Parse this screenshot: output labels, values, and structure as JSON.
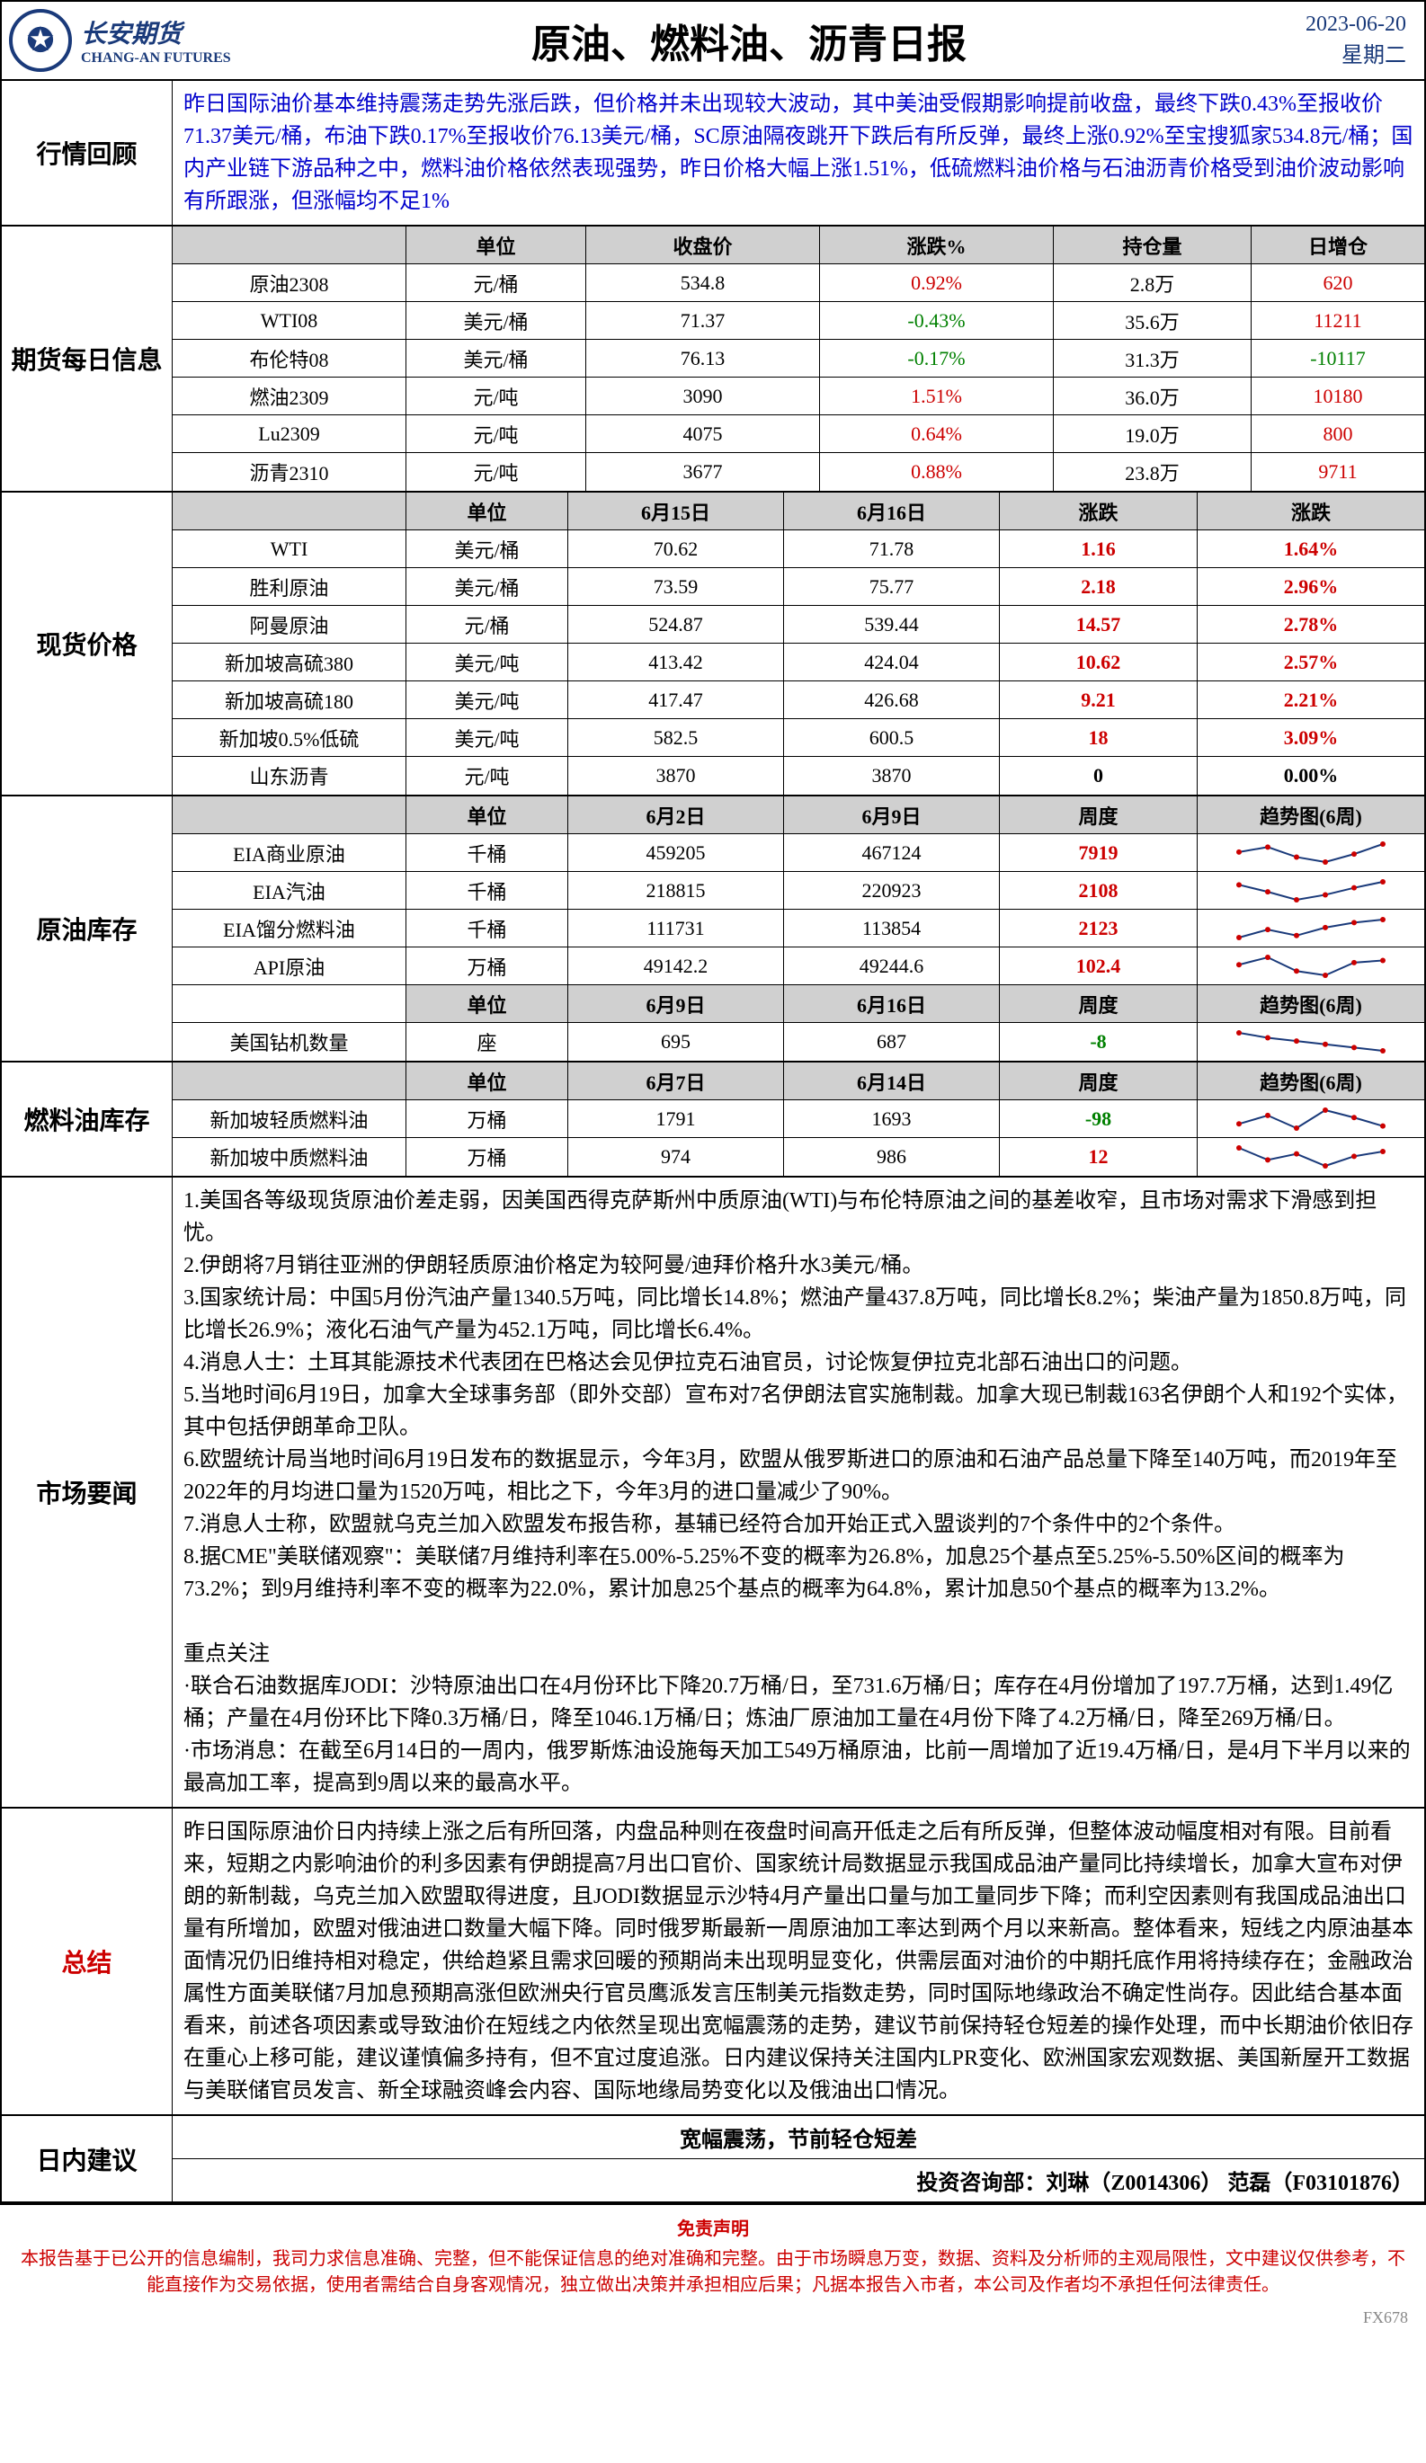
{
  "header": {
    "logo_cn": "长安期货",
    "logo_en": "CHANG-AN FUTURES",
    "title": "原油、燃料油、沥青日报",
    "date": "2023-06-20",
    "weekday": "星期二"
  },
  "review": {
    "label": "行情回顾",
    "text": "昨日国际油价基本维持震荡走势先涨后跌，但价格并未出现较大波动，其中美油受假期影响提前收盘，最终下跌0.43%至报收价71.37美元/桶，布油下跌0.17%至报收价76.13美元/桶，SC原油隔夜跳开下跌后有所反弹，最终上涨0.92%至宝搜狐家534.8元/桶；国内产业链下游品种之中，燃料油价格依然表现强势，昨日价格大幅上涨1.51%，低硫燃料油价格与石油沥青价格受到油价波动影响有所跟涨，但涨幅均不足1%"
  },
  "futures": {
    "label": "期货每日信息",
    "headers": [
      "",
      "单位",
      "收盘价",
      "涨跌%",
      "持仓量",
      "日增仓"
    ],
    "rows": [
      {
        "name": "原油2308",
        "unit": "元/桶",
        "close": "534.8",
        "chg": "0.92%",
        "chg_color": "red",
        "oi": "2.8万",
        "dchg": "620",
        "dchg_color": "red"
      },
      {
        "name": "WTI08",
        "unit": "美元/桶",
        "close": "71.37",
        "chg": "-0.43%",
        "chg_color": "green",
        "oi": "35.6万",
        "dchg": "11211",
        "dchg_color": "red"
      },
      {
        "name": "布伦特08",
        "unit": "美元/桶",
        "close": "76.13",
        "chg": "-0.17%",
        "chg_color": "green",
        "oi": "31.3万",
        "dchg": "-10117",
        "dchg_color": "green"
      },
      {
        "name": "燃油2309",
        "unit": "元/吨",
        "close": "3090",
        "chg": "1.51%",
        "chg_color": "red",
        "oi": "36.0万",
        "dchg": "10180",
        "dchg_color": "red"
      },
      {
        "name": "Lu2309",
        "unit": "元/吨",
        "close": "4075",
        "chg": "0.64%",
        "chg_color": "red",
        "oi": "19.0万",
        "dchg": "800",
        "dchg_color": "red"
      },
      {
        "name": "沥青2310",
        "unit": "元/吨",
        "close": "3677",
        "chg": "0.88%",
        "chg_color": "red",
        "oi": "23.8万",
        "dchg": "9711",
        "dchg_color": "red"
      }
    ]
  },
  "spot": {
    "label": "现货价格",
    "headers": [
      "",
      "单位",
      "6月15日",
      "6月16日",
      "涨跌",
      "涨跌"
    ],
    "rows": [
      {
        "name": "WTI",
        "unit": "美元/桶",
        "d1": "70.62",
        "d2": "71.78",
        "chg": "1.16",
        "chg_color": "red",
        "pct": "1.64%",
        "pct_color": "red"
      },
      {
        "name": "胜利原油",
        "unit": "美元/桶",
        "d1": "73.59",
        "d2": "75.77",
        "chg": "2.18",
        "chg_color": "red",
        "pct": "2.96%",
        "pct_color": "red"
      },
      {
        "name": "阿曼原油",
        "unit": "元/桶",
        "d1": "524.87",
        "d2": "539.44",
        "chg": "14.57",
        "chg_color": "red",
        "pct": "2.78%",
        "pct_color": "red"
      },
      {
        "name": "新加坡高硫380",
        "unit": "美元/吨",
        "d1": "413.42",
        "d2": "424.04",
        "chg": "10.62",
        "chg_color": "red",
        "pct": "2.57%",
        "pct_color": "red"
      },
      {
        "name": "新加坡高硫180",
        "unit": "美元/吨",
        "d1": "417.47",
        "d2": "426.68",
        "chg": "9.21",
        "chg_color": "red",
        "pct": "2.21%",
        "pct_color": "red"
      },
      {
        "name": "新加坡0.5%低硫",
        "unit": "美元/吨",
        "d1": "582.5",
        "d2": "600.5",
        "chg": "18",
        "chg_color": "red",
        "pct": "3.09%",
        "pct_color": "red"
      },
      {
        "name": "山东沥青",
        "unit": "元/吨",
        "d1": "3870",
        "d2": "3870",
        "chg": "0",
        "chg_color": "black",
        "pct": "0.00%",
        "pct_color": "black"
      }
    ]
  },
  "inventory": {
    "label": "原油库存",
    "headers": [
      "",
      "单位",
      "6月2日",
      "6月9日",
      "周度",
      "趋势图(6周)"
    ],
    "rows": [
      {
        "name": "EIA商业原油",
        "unit": "千桶",
        "d1": "459205",
        "d2": "467124",
        "chg": "7919",
        "chg_color": "red",
        "spark": [
          20,
          25,
          15,
          10,
          18,
          28
        ]
      },
      {
        "name": "EIA汽油",
        "unit": "千桶",
        "d1": "218815",
        "d2": "220923",
        "chg": "2108",
        "chg_color": "red",
        "spark": [
          25,
          18,
          10,
          15,
          22,
          28
        ]
      },
      {
        "name": "EIA馏分燃料油",
        "unit": "千桶",
        "d1": "111731",
        "d2": "113854",
        "chg": "2123",
        "chg_color": "red",
        "spark": [
          10,
          18,
          12,
          20,
          25,
          28
        ]
      },
      {
        "name": "API原油",
        "unit": "万桶",
        "d1": "49142.2",
        "d2": "49244.6",
        "chg": "102.4",
        "chg_color": "red",
        "spark": [
          18,
          25,
          12,
          8,
          20,
          22
        ]
      }
    ],
    "rig_headers": [
      "",
      "单位",
      "6月9日",
      "6月16日",
      "周度",
      "趋势图(6周)"
    ],
    "rig": {
      "name": "美国钻机数量",
      "unit": "座",
      "d1": "695",
      "d2": "687",
      "chg": "-8",
      "chg_color": "green",
      "spark": [
        28,
        22,
        18,
        14,
        10,
        6
      ]
    }
  },
  "fuel_inv": {
    "label": "燃料油库存",
    "headers": [
      "",
      "单位",
      "6月7日",
      "6月14日",
      "周度",
      "趋势图(6周)"
    ],
    "rows": [
      {
        "name": "新加坡轻质燃料油",
        "unit": "万桶",
        "d1": "1791",
        "d2": "1693",
        "chg": "-98",
        "chg_color": "green",
        "spark": [
          12,
          20,
          8,
          25,
          18,
          10
        ]
      },
      {
        "name": "新加坡中质燃料油",
        "unit": "万桶",
        "d1": "974",
        "d2": "986",
        "chg": "12",
        "chg_color": "red",
        "spark": [
          25,
          15,
          20,
          10,
          18,
          22
        ]
      }
    ]
  },
  "news": {
    "label": "市场要闻",
    "text": "1.美国各等级现货原油价差走弱，因美国西得克萨斯州中质原油(WTI)与布伦特原油之间的基差收窄，且市场对需求下滑感到担忧。\n2.伊朗将7月销往亚洲的伊朗轻质原油价格定为较阿曼/迪拜价格升水3美元/桶。\n3.国家统计局：中国5月份汽油产量1340.5万吨，同比增长14.8%；燃油产量437.8万吨，同比增长8.2%；柴油产量为1850.8万吨，同比增长26.9%；液化石油气产量为452.1万吨，同比增长6.4%。\n4.消息人士：土耳其能源技术代表团在巴格达会见伊拉克石油官员，讨论恢复伊拉克北部石油出口的问题。\n5.当地时间6月19日，加拿大全球事务部（即外交部）宣布对7名伊朗法官实施制裁。加拿大现已制裁163名伊朗个人和192个实体，其中包括伊朗革命卫队。\n6.欧盟统计局当地时间6月19日发布的数据显示，今年3月，欧盟从俄罗斯进口的原油和石油产品总量下降至140万吨，而2019年至2022年的月均进口量为1520万吨，相比之下，今年3月的进口量减少了90%。\n7.消息人士称，欧盟就乌克兰加入欧盟发布报告称，基辅已经符合加开始正式入盟谈判的7个条件中的2个条件。\n8.据CME\"美联储观察\"：美联储7月维持利率在5.00%-5.25%不变的概率为26.8%，加息25个基点至5.25%-5.50%区间的概率为73.2%；到9月维持利率不变的概率为22.0%，累计加息25个基点的概率为64.8%，累计加息50个基点的概率为13.2%。\n\n重点关注\n·联合石油数据库JODI：沙特原油出口在4月份环比下降20.7万桶/日，至731.6万桶/日；库存在4月份增加了197.7万桶，达到1.49亿桶；产量在4月份环比下降0.3万桶/日，降至1046.1万桶/日；炼油厂原油加工量在4月份下降了4.2万桶/日，降至269万桶/日。\n·市场消息：在截至6月14日的一周内，俄罗斯炼油设施每天加工549万桶原油，比前一周增加了近19.4万桶/日，是4月下半月以来的最高加工率，提高到9周以来的最高水平。"
  },
  "summary": {
    "label": "总结",
    "text": "昨日国际原油价日内持续上涨之后有所回落，内盘品种则在夜盘时间高开低走之后有所反弹，但整体波动幅度相对有限。目前看来，短期之内影响油价的利多因素有伊朗提高7月出口官价、国家统计局数据显示我国成品油产量同比持续增长，加拿大宣布对伊朗的新制裁，乌克兰加入欧盟取得进度，且JODI数据显示沙特4月产量出口量与加工量同步下降；而利空因素则有我国成品油出口量有所增加，欧盟对俄油进口数量大幅下降。同时俄罗斯最新一周原油加工率达到两个月以来新高。整体看来，短线之内原油基本面情况仍旧维持相对稳定，供给趋紧且需求回暖的预期尚未出现明显变化，供需层面对油价的中期托底作用将持续存在；金融政治属性方面美联储7月加息预期高涨但欧洲央行官员鹰派发言压制美元指数走势，同时国际地缘政治不确定性尚存。因此结合基本面看来，前述各项因素或导致油价在短线之内依然呈现出宽幅震荡的走势，建议节前保持轻仓短差的操作处理，而中长期油价依旧存在重心上移可能，建议谨慎偏多持有，但不宜过度追涨。日内建议保持关注国内LPR变化、欧洲国家宏观数据、美国新屋开工数据与美联储官员发言、新全球融资峰会内容、国际地缘局势变化以及俄油出口情况。"
  },
  "suggestion": {
    "label": "日内建议",
    "strategy": "宽幅震荡，节前轻仓短差",
    "contact": "投资咨询部：刘琳（Z0014306） 范磊（F03101876）"
  },
  "disclaimer": {
    "title": "免责声明",
    "text": "本报告基于已公开的信息编制，我司力求信息准确、完整，但不能保证信息的绝对准确和完整。由于市场瞬息万变，数据、资料及分析师的主观局限性，文中建议仅供参考，不能直接作为交易依据，使用者需结合自身客观情况，独立做出决策并承担相应后果；凡据本报告入市者，本公司及作者均不承担任何法律责任。"
  },
  "watermark": "FX678",
  "colors": {
    "blue": "#1a3a7a",
    "red": "#cc0000",
    "green": "#008000",
    "header_bg": "#d0d0d0",
    "spark_line": "#1a3a7a",
    "spark_dot": "#cc0000"
  }
}
